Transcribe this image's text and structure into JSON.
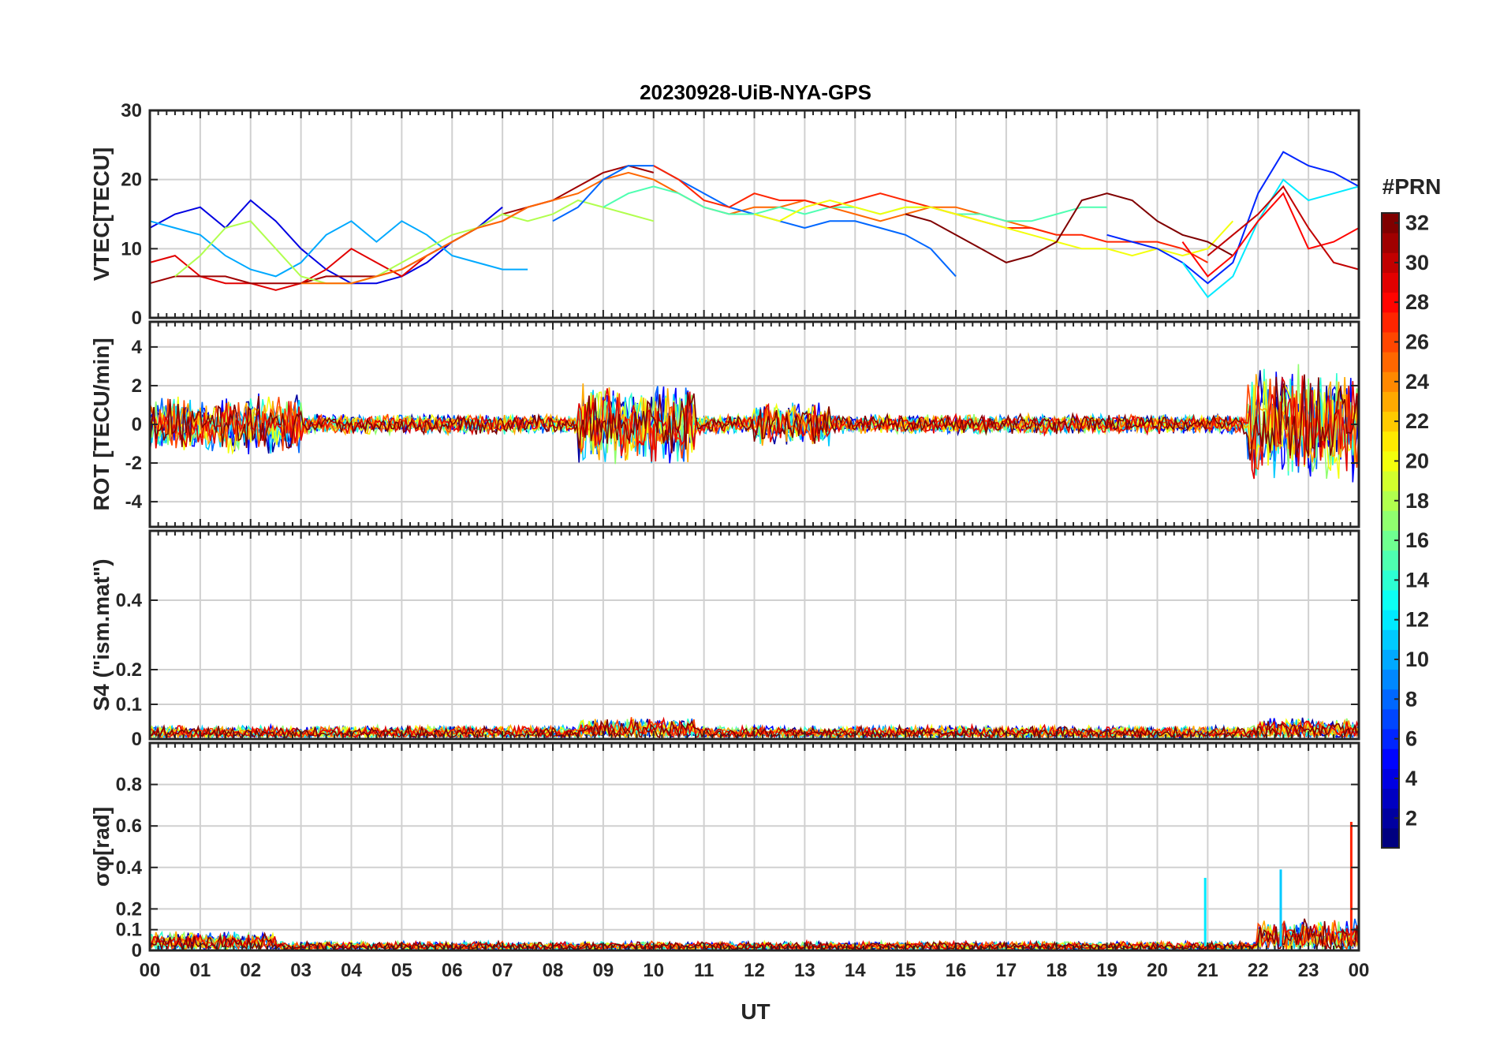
{
  "chart_data": {
    "title": "20230928-UiB-NYA-GPS",
    "type": "line",
    "xlabel": "UT",
    "x_ticks": [
      "00",
      "01",
      "02",
      "03",
      "04",
      "05",
      "06",
      "07",
      "08",
      "09",
      "10",
      "11",
      "12",
      "13",
      "14",
      "15",
      "16",
      "17",
      "18",
      "19",
      "20",
      "21",
      "22",
      "23",
      "00"
    ],
    "xlim": [
      0,
      24
    ],
    "colorbar": {
      "label": "#PRN",
      "ticks": [
        "2",
        "4",
        "6",
        "8",
        "10",
        "12",
        "14",
        "16",
        "18",
        "20",
        "22",
        "24",
        "26",
        "28",
        "30",
        "32"
      ],
      "range": [
        1,
        32
      ],
      "colormap": "jet"
    },
    "panels": [
      {
        "name": "vtec",
        "ylabel": "VTEC[TECU]",
        "ylim": [
          0,
          30
        ],
        "yticks": [
          "0",
          "10",
          "20",
          "30"
        ],
        "yvals": [
          0,
          10,
          20,
          30
        ],
        "series": [
          {
            "prn": 4,
            "x": [
              0,
              0.5,
              1,
              1.5,
              2,
              2.5,
              3,
              3.5,
              4,
              4.5,
              5,
              5.5,
              6,
              6.5,
              7
            ],
            "y": [
              13,
              15,
              16,
              13,
              17,
              14,
              10,
              7,
              5,
              5,
              6,
              8,
              11,
              13,
              16
            ]
          },
          {
            "prn": 10,
            "x": [
              0,
              0.5,
              1,
              1.5,
              2,
              2.5,
              3,
              3.5,
              4,
              4.5,
              5,
              5.5,
              6,
              6.5,
              7,
              7.5
            ],
            "y": [
              14,
              13,
              12,
              9,
              7,
              6,
              8,
              12,
              14,
              11,
              14,
              12,
              9,
              8,
              7,
              7
            ]
          },
          {
            "prn": 29,
            "x": [
              0,
              0.5,
              1,
              1.5,
              2,
              2.5,
              3,
              3.5,
              4,
              4.5,
              5,
              5.5,
              6,
              6.5,
              7,
              7.5,
              8
            ],
            "y": [
              8,
              9,
              6,
              5,
              5,
              4,
              5,
              7,
              10,
              8,
              6,
              9,
              11,
              13,
              14,
              16,
              17
            ]
          },
          {
            "prn": 31,
            "x": [
              0,
              0.5,
              1,
              1.5,
              2,
              2.5,
              3,
              3.5,
              4,
              4.5,
              5,
              5.5,
              6,
              6.5,
              7,
              7.5,
              8,
              8.5,
              9,
              9.5,
              10
            ],
            "y": [
              5,
              6,
              6,
              6,
              5,
              5,
              5,
              6,
              6,
              6,
              7,
              9,
              11,
              13,
              15,
              16,
              17,
              19,
              21,
              22,
              21
            ]
          },
          {
            "prn": 18,
            "x": [
              0.5,
              1,
              1.5,
              2,
              2.5,
              3,
              3.5,
              4,
              4.5,
              5,
              5.5,
              6,
              6.5,
              7,
              7.5,
              8,
              8.5,
              9,
              9.5,
              10
            ],
            "y": [
              6,
              9,
              13,
              14,
              10,
              6,
              5,
              5,
              6,
              8,
              10,
              12,
              13,
              15,
              14,
              15,
              17,
              16,
              15,
              14
            ]
          },
          {
            "prn": 25,
            "x": [
              3,
              3.5,
              4,
              4.5,
              5,
              5.5,
              6,
              6.5,
              7,
              7.5,
              8,
              8.5,
              9,
              9.5,
              10,
              10.5,
              11,
              11.5,
              12,
              12.5,
              13,
              13.5,
              14,
              14.5,
              15,
              15.5,
              16,
              16.5,
              17,
              17.5,
              18
            ],
            "y": [
              5,
              5,
              5,
              6,
              7,
              9,
              11,
              13,
              14,
              16,
              17,
              18,
              20,
              21,
              20,
              18,
              16,
              15,
              16,
              16,
              17,
              16,
              15,
              14,
              15,
              16,
              16,
              15,
              14,
              13,
              12
            ]
          },
          {
            "prn": 8,
            "x": [
              8,
              8.5,
              9,
              9.5,
              10,
              10.5,
              11,
              11.5,
              12,
              12.5,
              13,
              13.5,
              14,
              14.5,
              15,
              15.5,
              16
            ],
            "y": [
              14,
              16,
              20,
              22,
              22,
              20,
              18,
              16,
              15,
              14,
              13,
              14,
              14,
              13,
              12,
              10,
              6
            ]
          },
          {
            "prn": 15,
            "x": [
              9,
              9.5,
              10,
              10.5,
              11,
              11.5,
              12,
              12.5,
              13,
              13.5,
              14,
              14.5,
              15,
              15.5,
              16,
              16.5,
              17,
              17.5,
              18,
              18.5,
              19
            ],
            "y": [
              16,
              18,
              19,
              18,
              16,
              15,
              15,
              16,
              15,
              16,
              16,
              15,
              16,
              16,
              15,
              15,
              14,
              14,
              15,
              16,
              16
            ]
          },
          {
            "prn": 27,
            "x": [
              10,
              10.5,
              11,
              11.5,
              12,
              12.5,
              13,
              13.5,
              14,
              14.5,
              15,
              15.5,
              16,
              16.5,
              17,
              17.5,
              18,
              18.5,
              19,
              19.5,
              20,
              20.5,
              21
            ],
            "y": [
              22,
              20,
              17,
              16,
              18,
              17,
              17,
              16,
              17,
              18,
              17,
              16,
              15,
              14,
              13,
              13,
              12,
              12,
              11,
              11,
              11,
              10,
              8
            ]
          },
          {
            "prn": 20,
            "x": [
              12,
              12.5,
              13,
              13.5,
              14,
              14.5,
              15,
              15.5,
              16,
              16.5,
              17,
              17.5,
              18,
              18.5,
              19,
              19.5,
              20,
              20.5,
              21,
              21.5
            ],
            "y": [
              15,
              14,
              16,
              17,
              16,
              15,
              16,
              16,
              15,
              14,
              13,
              12,
              11,
              10,
              10,
              9,
              10,
              9,
              10,
              14
            ]
          },
          {
            "prn": 32,
            "x": [
              15,
              15.5,
              16,
              16.5,
              17,
              17.5,
              18,
              18.5,
              19,
              19.5,
              20,
              20.5,
              21,
              21.5
            ],
            "y": [
              15,
              14,
              12,
              10,
              8,
              9,
              11,
              17,
              18,
              17,
              14,
              12,
              11,
              9
            ]
          },
          {
            "prn": 6,
            "x": [
              19,
              19.5,
              20,
              20.5,
              21,
              21.5,
              22,
              22.5,
              23,
              23.5,
              24
            ],
            "y": [
              12,
              11,
              10,
              8,
              5,
              8,
              18,
              24,
              22,
              21,
              19
            ]
          },
          {
            "prn": 12,
            "x": [
              20.5,
              21,
              21.5,
              22,
              22.5,
              23,
              23.5,
              24
            ],
            "y": [
              8,
              3,
              6,
              14,
              20,
              17,
              18,
              19
            ]
          },
          {
            "prn": 28,
            "x": [
              20.5,
              21,
              21.5,
              22,
              22.5,
              23,
              23.5,
              24
            ],
            "y": [
              11,
              6,
              9,
              14,
              18,
              10,
              11,
              13
            ]
          },
          {
            "prn": 30,
            "x": [
              21,
              21.5,
              22,
              22.5,
              23,
              23.5,
              24
            ],
            "y": [
              9,
              12,
              15,
              19,
              13,
              8,
              7
            ]
          }
        ]
      },
      {
        "name": "rot",
        "ylabel": "ROT [TECU/min]",
        "ylim": [
          -5.3,
          5.3
        ],
        "yticks": [
          "-4",
          "-2",
          "0",
          "2",
          "4"
        ],
        "yvals": [
          -4,
          -2,
          0,
          2,
          4
        ],
        "noise": {
          "base": 0.55,
          "bursts": [
            [
              0,
              3,
              1.6
            ],
            [
              8.5,
              10.8,
              2.2
            ],
            [
              12,
              13.5,
              1.2
            ],
            [
              21.8,
              24,
              3.2
            ]
          ]
        }
      },
      {
        "name": "s4",
        "ylabel": "S4 (\"ism.mat\")",
        "ylim": [
          0,
          0.6
        ],
        "yticks": [
          "0",
          "0.1",
          "0.2",
          "0.4"
        ],
        "yvals": [
          0,
          0.1,
          0.2,
          0.4
        ],
        "noise": {
          "base": 0.035,
          "bursts": [
            [
              8.5,
              10.8,
              0.06
            ],
            [
              22,
              24,
              0.06
            ]
          ]
        }
      },
      {
        "name": "sigma",
        "ylabel": "σφ[rad]",
        "ylim": [
          0,
          1
        ],
        "yticks": [
          "0",
          "0.1",
          "0.2",
          "0.4",
          "0.6",
          "0.8"
        ],
        "yvals": [
          0,
          0.1,
          0.2,
          0.4,
          0.6,
          0.8
        ],
        "noise": {
          "base": 0.04,
          "bursts": [
            [
              0,
              2.5,
              0.09
            ],
            [
              22,
              24,
              0.15
            ]
          ]
        },
        "spikes": [
          {
            "x": 20.95,
            "y": 0.35,
            "prn": 12
          },
          {
            "x": 22.45,
            "y": 0.39,
            "prn": 11
          },
          {
            "x": 23.85,
            "y": 0.62,
            "prn": 27
          }
        ]
      }
    ]
  }
}
